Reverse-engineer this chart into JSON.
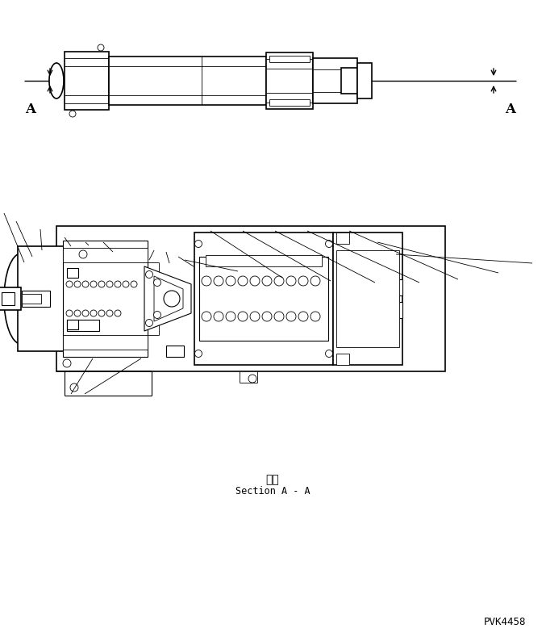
{
  "bg_color": "#ffffff",
  "line_color": "#000000",
  "lw_thick": 1.2,
  "lw_med": 0.8,
  "lw_thin": 0.6,
  "title_ja": "断面",
  "title_en": "Section A - A",
  "watermark": "PVK4458",
  "fig_width": 6.77,
  "fig_height": 7.94,
  "dpi": 100
}
